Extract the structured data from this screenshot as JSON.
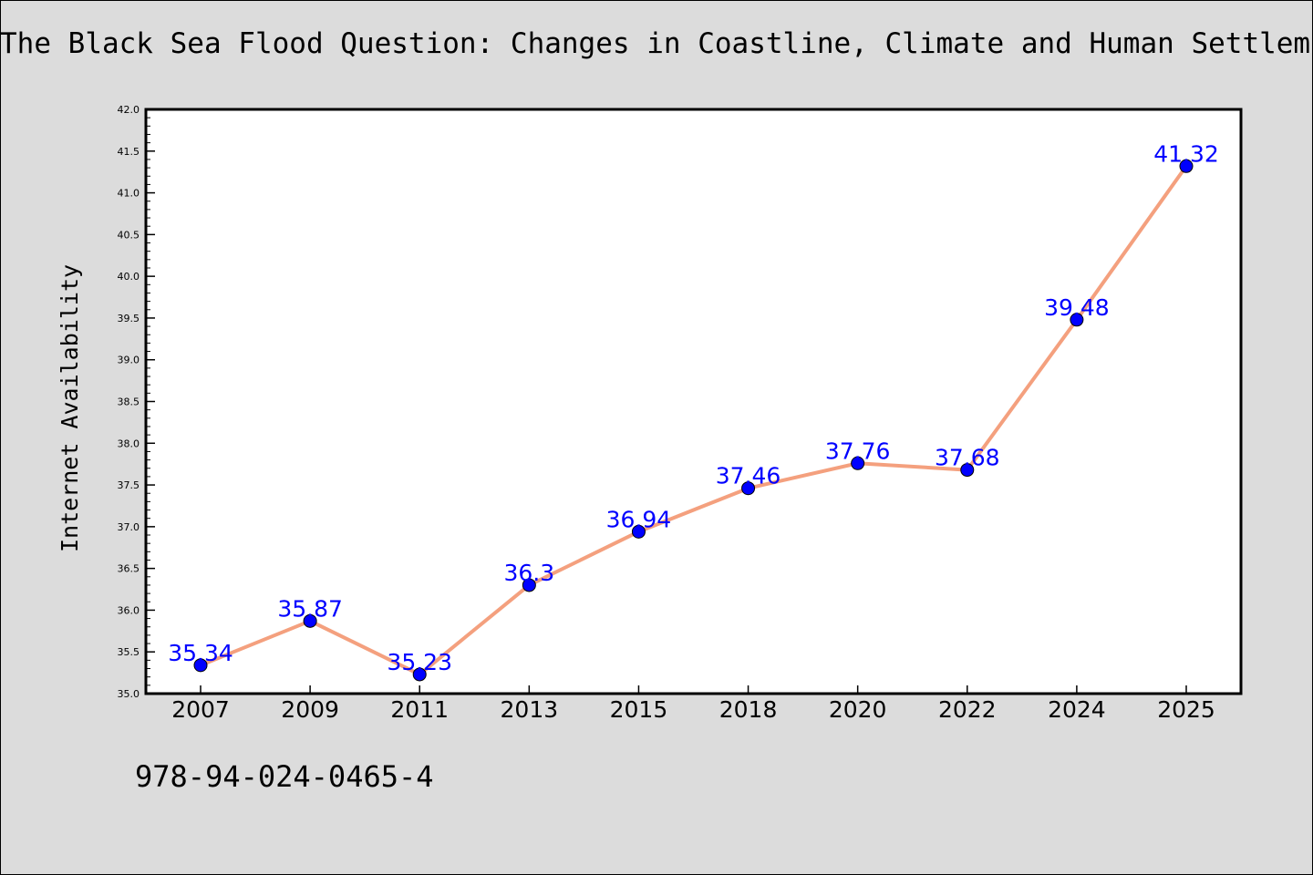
{
  "title": "The Black Sea Flood Question: Changes in Coastline, Climate and Human Settlement",
  "footer_code": "978-94-024-0465-4",
  "colors": {
    "background": "#dcdcdc",
    "plot_background": "#ffffff",
    "line": "#f4a07e",
    "marker": "#0000ff",
    "data_label": "#0000ff"
  },
  "chart_data": {
    "type": "line",
    "title": "The Black Sea Flood Question: Changes in Coastline, Climate and Human Settlement",
    "xlabel": "",
    "ylabel": "Internet Availability",
    "categories": [
      "2007",
      "2009",
      "2011",
      "2013",
      "2015",
      "2018",
      "2020",
      "2022",
      "2024",
      "2025"
    ],
    "values": [
      35.34,
      35.87,
      35.23,
      36.3,
      36.94,
      37.46,
      37.76,
      37.68,
      39.48,
      41.32
    ],
    "data_labels": [
      "35.34",
      "35.87",
      "35.23",
      "36.3",
      "36.94",
      "37.46",
      "37.76",
      "37.68",
      "39.48",
      "41.32"
    ],
    "ylim": [
      35.0,
      42.0
    ],
    "yticks": [
      "35.0",
      "35.5",
      "36.0",
      "36.5",
      "37.0",
      "37.5",
      "38.0",
      "38.5",
      "39.0",
      "39.5",
      "40.0",
      "40.5",
      "41.0",
      "41.5",
      "42.0"
    ],
    "grid": false,
    "legend": "none"
  }
}
